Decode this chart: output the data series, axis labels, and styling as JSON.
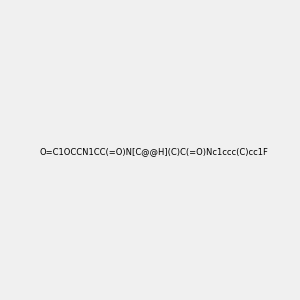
{
  "smiles": "O=C1OCCN1CC(=O)N[C@@H](C)C(=O)Nc1ccc(C)cc1F",
  "image_size": 300,
  "background_color": "#f0f0f0",
  "title": ""
}
